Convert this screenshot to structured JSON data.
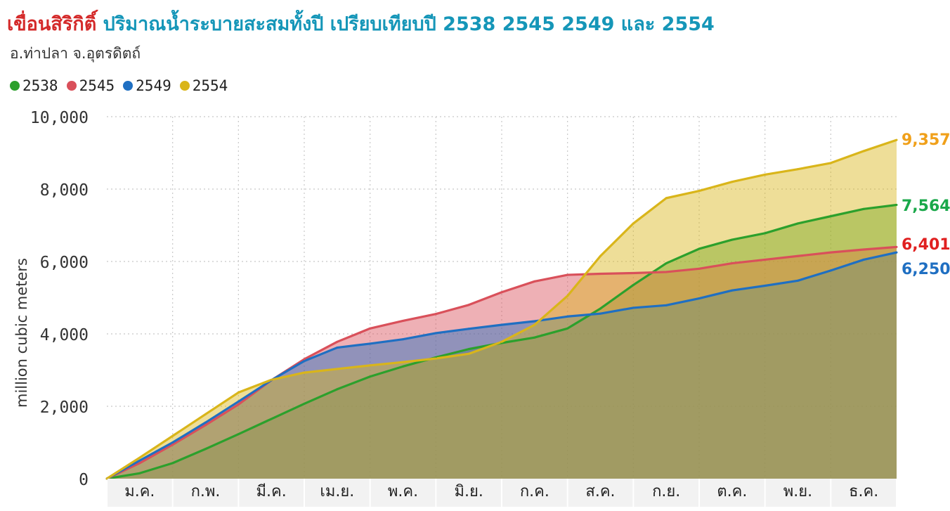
{
  "title": {
    "dam": "เขื่อนสิริกิติ์",
    "rest": "ปริมาณน้ำระบายสะสมทั้งปี เปรียบเทียบปี 2538 2545 2549 และ 2554"
  },
  "subtitle": "อ.ท่าปลา จ.อุตรดิตถ์",
  "chart_data": {
    "type": "area",
    "ylabel": "million cubic meters",
    "xlabel": "",
    "ylim": [
      0,
      10000
    ],
    "yticks": [
      "0",
      "2,000",
      "4,000",
      "6,000",
      "8,000",
      "10,000"
    ],
    "ytick_values": [
      0,
      2000,
      4000,
      6000,
      8000,
      10000
    ],
    "months": [
      "ม.ค.",
      "ก.พ.",
      "มี.ค.",
      "เม.ย.",
      "พ.ค.",
      "มิ.ย.",
      "ก.ค.",
      "ส.ค.",
      "ก.ย.",
      "ต.ค.",
      "พ.ย.",
      "ธ.ค."
    ],
    "x": [
      0,
      0.5,
      1,
      1.5,
      2,
      2.5,
      3,
      3.5,
      4,
      4.5,
      5,
      5.5,
      6,
      6.5,
      7,
      7.5,
      8,
      8.5,
      9,
      9.5,
      10,
      10.5,
      11,
      11.5,
      12
    ],
    "legend_placement": "top-left",
    "grid": true,
    "series": [
      {
        "name": "2538",
        "color": "#2ca02c",
        "end_label": "7,564",
        "values": [
          0,
          150,
          430,
          820,
          1230,
          1650,
          2070,
          2470,
          2820,
          3100,
          3350,
          3580,
          3750,
          3900,
          4150,
          4700,
          5350,
          5950,
          6350,
          6600,
          6780,
          7050,
          7250,
          7450,
          7564
        ]
      },
      {
        "name": "2545",
        "color": "#d9505a",
        "end_label": "6,401",
        "values": [
          0,
          430,
          940,
          1480,
          2050,
          2720,
          3300,
          3780,
          4150,
          4360,
          4550,
          4800,
          5150,
          5450,
          5630,
          5660,
          5680,
          5710,
          5800,
          5950,
          6050,
          6150,
          6250,
          6330,
          6401
        ]
      },
      {
        "name": "2549",
        "color": "#1f6fc2",
        "end_label": "6,250",
        "values": [
          0,
          500,
          1000,
          1550,
          2130,
          2720,
          3250,
          3620,
          3730,
          3850,
          4020,
          4140,
          4250,
          4350,
          4480,
          4560,
          4720,
          4790,
          4980,
          5200,
          5330,
          5470,
          5750,
          6050,
          6250
        ]
      },
      {
        "name": "2554",
        "color": "#d9b51a",
        "end_label": "9,357",
        "values": [
          0,
          580,
          1180,
          1780,
          2380,
          2730,
          2930,
          3030,
          3130,
          3220,
          3320,
          3450,
          3780,
          4250,
          5050,
          6150,
          7050,
          7750,
          7950,
          8200,
          8400,
          8550,
          8720,
          9050,
          9357
        ]
      }
    ]
  }
}
